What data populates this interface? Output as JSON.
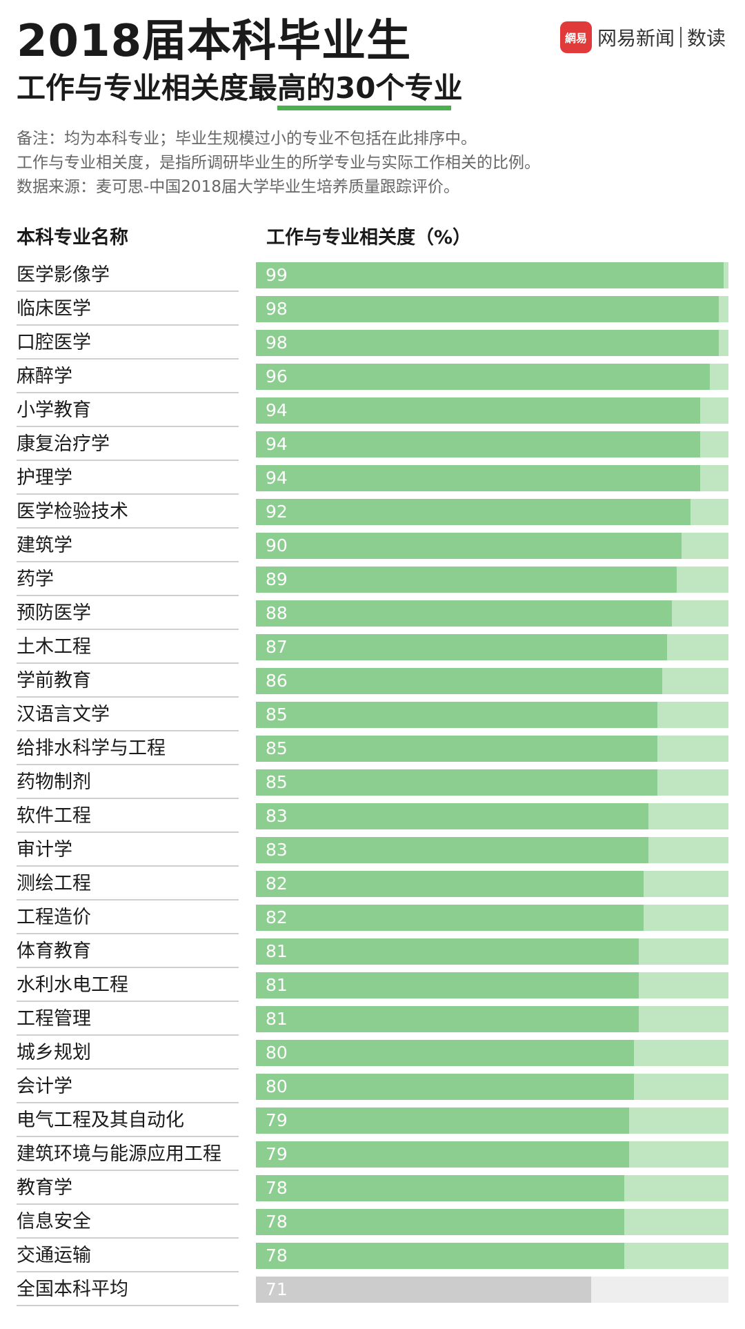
{
  "header": {
    "title_line1": "2018届本科毕业生",
    "title_line2": "工作与专业相关度最高的30个专业"
  },
  "brand": {
    "logo_text": "網易",
    "name": "网易新闻",
    "sub": "数读"
  },
  "notes": [
    "备注：均为本科专业；毕业生规模过小的专业不包括在此排序中。",
    "工作与专业相关度，是指所调研毕业生的所学专业与实际工作相关的比例。",
    "数据来源：麦可思-中国2018届大学毕业生培养质量跟踪评价。"
  ],
  "colors": {
    "bar_fill": "#8bce8f",
    "bar_track": "#bfe6c0",
    "avg_fill": "#cccccc",
    "avg_track": "#eeeeee",
    "accent": "#4caf50",
    "brand_red": "#e03a3a"
  },
  "chart_data": {
    "type": "bar",
    "orientation": "horizontal",
    "xlabel": "工作与专业相关度（%）",
    "ylabel": "本科专业名称",
    "xlim": [
      0,
      100
    ],
    "grid": false,
    "categories": [
      "医学影像学",
      "临床医学",
      "口腔医学",
      "麻醉学",
      "小学教育",
      "康复治疗学",
      "护理学",
      "医学检验技术",
      "建筑学",
      "药学",
      "预防医学",
      "土木工程",
      "学前教育",
      "汉语言文学",
      "给排水科学与工程",
      "药物制剂",
      "软件工程",
      "审计学",
      "测绘工程",
      "工程造价",
      "体育教育",
      "水利水电工程",
      "工程管理",
      "城乡规划",
      "会计学",
      "电气工程及其自动化",
      "建筑环境与能源应用工程",
      "教育学",
      "信息安全",
      "交通运输",
      "全国本科平均"
    ],
    "values": [
      99,
      98,
      98,
      96,
      94,
      94,
      94,
      92,
      90,
      89,
      88,
      87,
      86,
      85,
      85,
      85,
      83,
      83,
      82,
      82,
      81,
      81,
      81,
      80,
      80,
      79,
      79,
      78,
      78,
      78,
      71
    ],
    "highlight": {
      "category": "全国本科平均",
      "color": "#cccccc"
    }
  }
}
